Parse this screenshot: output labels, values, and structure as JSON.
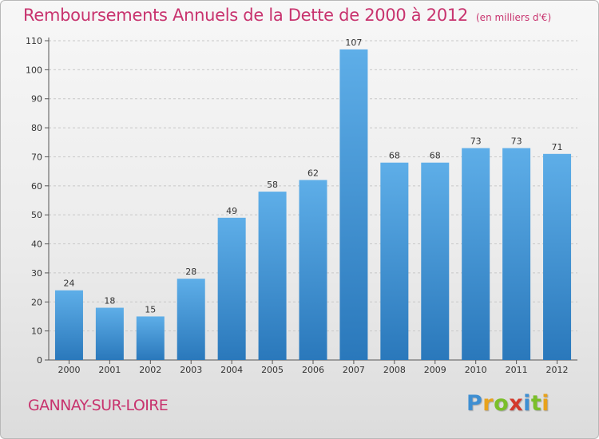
{
  "header": {
    "title": "Remboursements Annuels de la Dette de 2000 à 2012",
    "subtitle": "(en milliers d'€)"
  },
  "footer": {
    "commune": "GANNAY-SUR-LOIRE",
    "brand": "Proxiti"
  },
  "colors": {
    "title": "#c8336e",
    "bar_top": "#5eaee8",
    "bar_bottom": "#2a78bb",
    "brand_letters": [
      "#3f8fd2",
      "#e8a21c",
      "#7bbf2a",
      "#d33a2c",
      "#3f8fd2",
      "#7bbf2a",
      "#e8a21c"
    ]
  },
  "chart_data": {
    "type": "bar",
    "title": "Remboursements Annuels de la Dette de 2000 à 2012",
    "subtitle": "(en milliers d'€)",
    "categories": [
      "2000",
      "2001",
      "2002",
      "2003",
      "2004",
      "2005",
      "2006",
      "2007",
      "2008",
      "2009",
      "2010",
      "2011",
      "2012"
    ],
    "values": [
      24,
      18,
      15,
      28,
      49,
      58,
      62,
      107,
      68,
      68,
      73,
      73,
      71
    ],
    "ylim": [
      0,
      110
    ],
    "yticks": [
      0,
      10,
      20,
      30,
      40,
      50,
      60,
      70,
      80,
      90,
      100,
      110
    ],
    "grid": true,
    "data_labels": true
  }
}
